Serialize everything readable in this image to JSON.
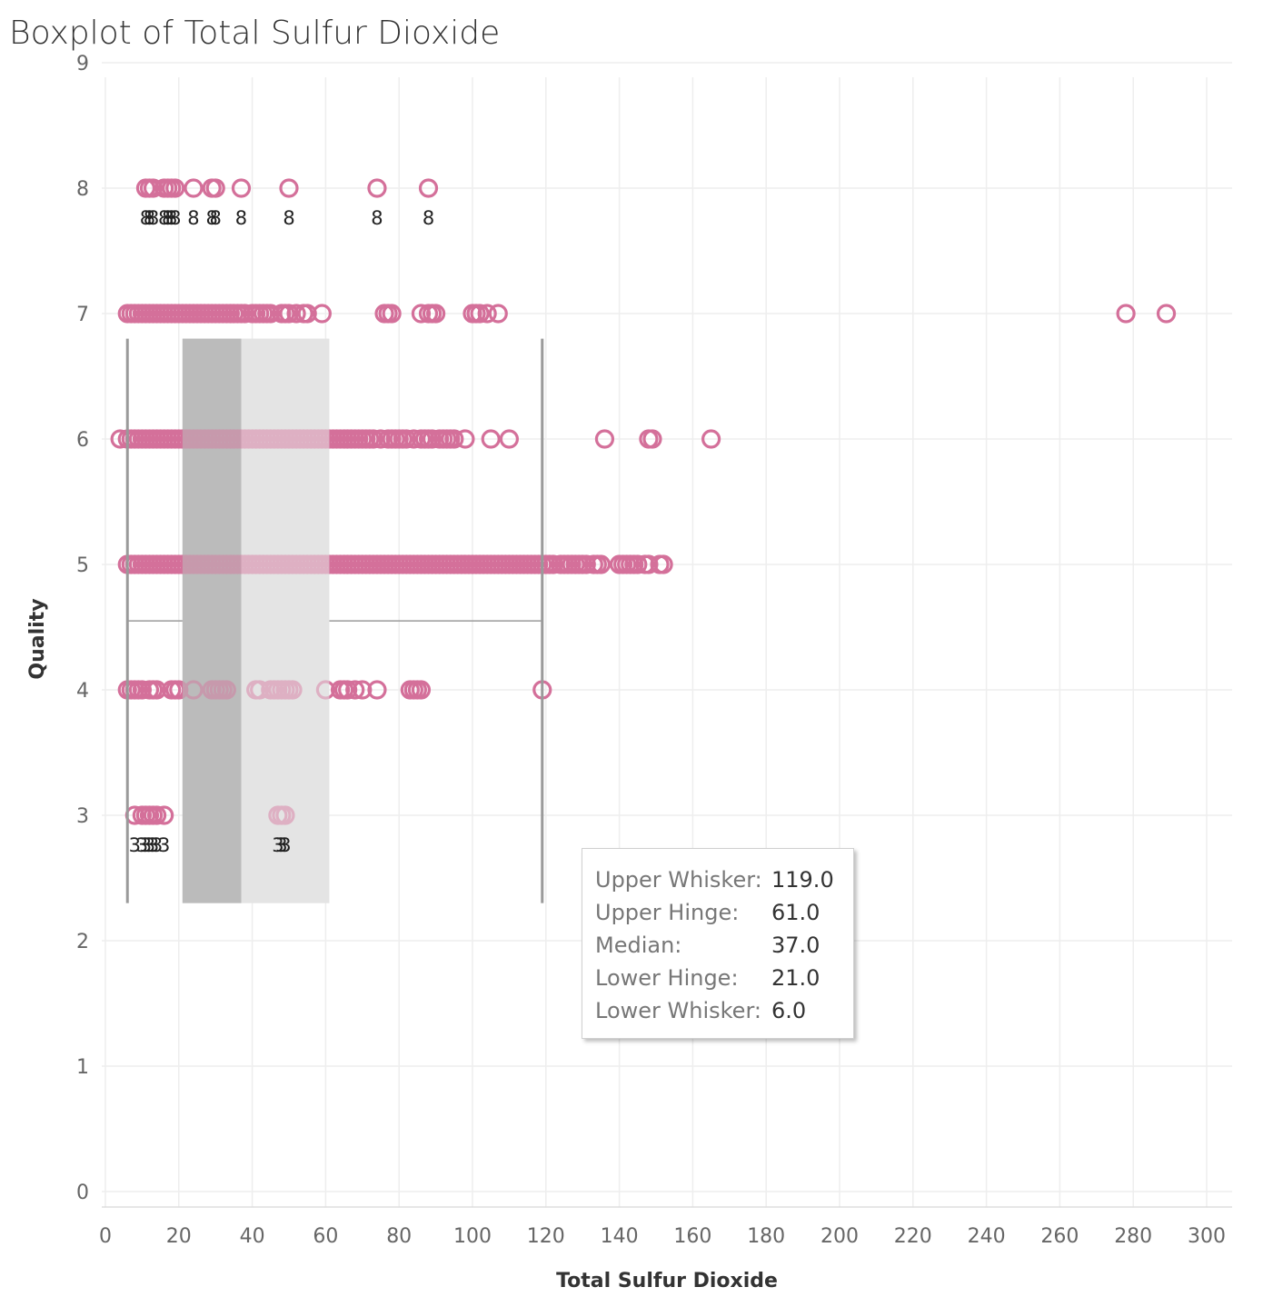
{
  "chart_data": {
    "type": "box",
    "title": "Boxplot of Total Sulfur Dioxide",
    "xlabel": "Total Sulfur Dioxide",
    "ylabel": "Quality",
    "xlim": [
      0,
      305
    ],
    "ylim": [
      0,
      9
    ],
    "x_ticks": [
      0,
      20,
      40,
      60,
      80,
      100,
      120,
      140,
      160,
      180,
      200,
      220,
      240,
      260,
      280,
      300
    ],
    "y_ticks": [
      0,
      1,
      2,
      3,
      4,
      5,
      6,
      7,
      8,
      9
    ],
    "grid": true,
    "box": {
      "lower_whisker": 6.0,
      "lower_hinge": 21.0,
      "median": 37.0,
      "upper_hinge": 61.0,
      "upper_whisker": 119.0,
      "y_range": [
        2.3,
        6.8
      ]
    },
    "point_color": "#d4709a",
    "series": [
      {
        "quality": 8,
        "x": [
          11,
          12,
          13,
          16,
          17,
          18,
          19,
          24,
          29,
          30,
          37,
          50,
          74,
          88
        ],
        "labels": [
          8,
          8,
          8,
          8,
          8,
          8,
          8,
          8,
          8,
          8,
          8,
          8,
          8,
          8
        ]
      },
      {
        "quality": 7,
        "x": [
          6,
          7,
          8,
          9,
          10,
          11,
          12,
          13,
          14,
          15,
          16,
          17,
          18,
          19,
          20,
          21,
          22,
          23,
          24,
          25,
          26,
          27,
          28,
          29,
          30,
          31,
          32,
          33,
          34,
          35,
          36,
          37,
          38,
          40,
          41,
          42,
          43,
          44,
          45,
          48,
          49,
          50,
          52,
          54,
          55,
          59,
          76,
          77,
          78,
          86,
          88,
          89,
          90,
          100,
          101,
          102,
          104,
          107,
          278,
          289
        ]
      },
      {
        "quality": 6,
        "x": [
          4,
          6,
          7,
          8,
          9,
          10,
          11,
          12,
          13,
          14,
          15,
          16,
          17,
          18,
          19,
          20,
          21,
          22,
          23,
          24,
          25,
          26,
          27,
          28,
          29,
          30,
          31,
          32,
          33,
          34,
          35,
          36,
          37,
          38,
          39,
          40,
          41,
          42,
          43,
          44,
          45,
          46,
          47,
          48,
          49,
          50,
          51,
          52,
          53,
          54,
          55,
          56,
          57,
          58,
          59,
          60,
          61,
          62,
          63,
          64,
          65,
          66,
          67,
          68,
          69,
          70,
          71,
          72,
          73,
          75,
          77,
          78,
          79,
          80,
          81,
          82,
          84,
          86,
          87,
          88,
          89,
          91,
          92,
          93,
          94,
          95,
          98,
          105,
          110,
          136,
          148,
          149,
          165
        ]
      },
      {
        "quality": 5,
        "x": [
          6,
          7,
          8,
          9,
          10,
          11,
          12,
          13,
          14,
          15,
          16,
          17,
          18,
          19,
          20,
          21,
          22,
          23,
          24,
          25,
          26,
          27,
          28,
          29,
          30,
          31,
          32,
          33,
          34,
          35,
          36,
          37,
          38,
          39,
          40,
          41,
          42,
          43,
          44,
          45,
          46,
          47,
          48,
          49,
          50,
          51,
          52,
          53,
          54,
          55,
          56,
          57,
          58,
          59,
          60,
          61,
          62,
          63,
          64,
          65,
          66,
          67,
          68,
          69,
          70,
          71,
          72,
          73,
          74,
          75,
          76,
          77,
          78,
          79,
          80,
          81,
          82,
          83,
          84,
          85,
          86,
          87,
          88,
          89,
          90,
          91,
          92,
          93,
          94,
          95,
          96,
          97,
          98,
          99,
          100,
          101,
          102,
          103,
          104,
          105,
          106,
          107,
          108,
          109,
          110,
          111,
          112,
          113,
          114,
          115,
          116,
          117,
          118,
          119,
          120,
          121,
          122,
          124,
          125,
          126,
          127,
          128,
          129,
          130,
          131,
          133,
          134,
          135,
          140,
          141,
          142,
          143,
          144,
          145,
          147,
          148,
          151,
          152
        ]
      },
      {
        "quality": 4,
        "x": [
          6,
          7,
          8,
          9,
          10,
          12,
          13,
          14,
          18,
          19,
          20,
          24,
          29,
          30,
          31,
          32,
          33,
          41,
          42,
          45,
          46,
          47,
          48,
          49,
          50,
          51,
          60,
          64,
          65,
          66,
          68,
          70,
          74,
          83,
          84,
          85,
          86,
          119
        ]
      },
      {
        "quality": 3,
        "x": [
          8,
          10,
          11,
          12,
          13,
          14,
          16,
          47,
          48,
          49
        ],
        "labels": [
          3,
          3,
          3,
          3,
          3,
          3,
          3,
          3,
          3,
          3
        ]
      }
    ],
    "tooltip": {
      "rows": [
        {
          "label": "Upper Whisker:",
          "value": "119.0"
        },
        {
          "label": "Upper Hinge:",
          "value": "61.0"
        },
        {
          "label": "Median:",
          "value": "37.0"
        },
        {
          "label": "Lower Hinge:",
          "value": "21.0"
        },
        {
          "label": "Lower Whisker:",
          "value": "6.0"
        }
      ]
    }
  }
}
